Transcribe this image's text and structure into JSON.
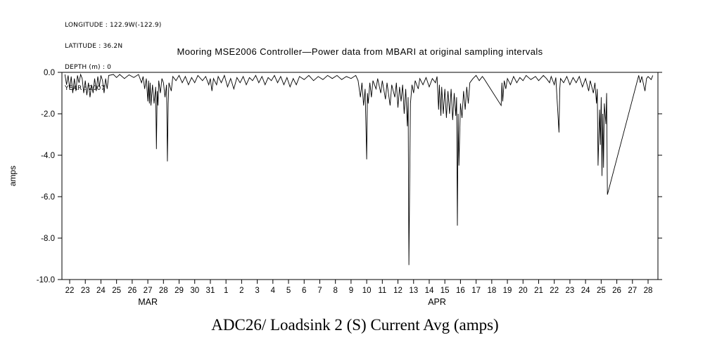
{
  "header_lines": [
    "LONGITUDE : 122.9W(-122.9)",
    "LATITUDE : 36.2N",
    "DEPTH (m) : 0",
    "YEAR : 2007"
  ],
  "chart_data": {
    "type": "line",
    "title": "Mooring MSE2006 Controller—Power data from MBARI at original sampling intervals",
    "bottom_title": "ADC26/ Loadsink 2 (S) Current Avg (amps)",
    "ylabel": "amps",
    "ylim": [
      -10,
      0
    ],
    "y_ticks": [
      0,
      -2,
      -4,
      -6,
      -8,
      -10
    ],
    "y_tick_labels": [
      "0.0",
      "-2.0",
      "-4.0",
      "-6.0",
      "-8.0",
      "-10.0"
    ],
    "x_unit": "day index, 0 = Mar 22 2007",
    "x_tick_labels": [
      "22",
      "23",
      "24",
      "25",
      "26",
      "27",
      "28",
      "29",
      "30",
      "31",
      "1",
      "2",
      "3",
      "4",
      "5",
      "6",
      "7",
      "8",
      "9",
      "10",
      "11",
      "12",
      "13",
      "14",
      "15",
      "16",
      "17",
      "18",
      "19",
      "20",
      "21",
      "22",
      "23",
      "24",
      "25",
      "26",
      "27",
      "28"
    ],
    "month_labels": [
      {
        "label": "MAR",
        "day": 5
      },
      {
        "label": "APR",
        "day": 23.5
      }
    ],
    "grid": false,
    "legend": "none",
    "line_color": "#000000",
    "series": [
      {
        "name": "Loadsink 2 (S) Current Avg (amps)",
        "points": [
          [
            -0.3,
            -0.1
          ],
          [
            -0.2,
            -0.6
          ],
          [
            -0.1,
            -0.15
          ],
          [
            0,
            -0.8
          ],
          [
            0.1,
            -0.2
          ],
          [
            0.2,
            -1.0
          ],
          [
            0.3,
            -0.3
          ],
          [
            0.4,
            -0.9
          ],
          [
            0.5,
            -0.15
          ],
          [
            0.6,
            -0.5
          ],
          [
            0.7,
            -0.1
          ],
          [
            0.8,
            -0.3
          ],
          [
            0.9,
            -1.0
          ],
          [
            1.0,
            -0.4
          ],
          [
            1.1,
            -1.1
          ],
          [
            1.2,
            -0.5
          ],
          [
            1.3,
            -1.2
          ],
          [
            1.4,
            -0.6
          ],
          [
            1.5,
            -1.0
          ],
          [
            1.6,
            -0.3
          ],
          [
            1.7,
            -0.9
          ],
          [
            1.8,
            -0.2
          ],
          [
            1.9,
            -0.7
          ],
          [
            2.0,
            -0.15
          ],
          [
            2.1,
            -0.4
          ],
          [
            2.2,
            -1.0
          ],
          [
            2.3,
            -0.3
          ],
          [
            2.4,
            -0.8
          ],
          [
            2.5,
            -0.15
          ],
          [
            2.8,
            -0.1
          ],
          [
            3.0,
            -0.25
          ],
          [
            3.2,
            -0.1
          ],
          [
            3.5,
            -0.3
          ],
          [
            3.8,
            -0.12
          ],
          [
            4.1,
            -0.25
          ],
          [
            4.4,
            -0.1
          ],
          [
            4.6,
            -0.5
          ],
          [
            4.7,
            -0.2
          ],
          [
            4.8,
            -0.8
          ],
          [
            4.9,
            -0.3
          ],
          [
            5.0,
            -1.4
          ],
          [
            5.05,
            -0.4
          ],
          [
            5.1,
            -1.5
          ],
          [
            5.15,
            -0.5
          ],
          [
            5.2,
            -1.6
          ],
          [
            5.3,
            -0.6
          ],
          [
            5.4,
            -1.5
          ],
          [
            5.5,
            -0.7
          ],
          [
            5.55,
            -3.7
          ],
          [
            5.6,
            -0.9
          ],
          [
            5.65,
            -1.6
          ],
          [
            5.7,
            -0.4
          ],
          [
            5.8,
            -1.0
          ],
          [
            5.9,
            -0.3
          ],
          [
            6.0,
            -0.5
          ],
          [
            6.1,
            -1.2
          ],
          [
            6.2,
            -0.6
          ],
          [
            6.25,
            -4.3
          ],
          [
            6.3,
            -1.5
          ],
          [
            6.35,
            -0.5
          ],
          [
            6.5,
            -0.9
          ],
          [
            6.6,
            -0.2
          ],
          [
            6.8,
            -0.4
          ],
          [
            7.0,
            -0.15
          ],
          [
            7.2,
            -0.5
          ],
          [
            7.4,
            -0.2
          ],
          [
            7.6,
            -0.6
          ],
          [
            7.8,
            -0.25
          ],
          [
            8.0,
            -0.5
          ],
          [
            8.2,
            -0.15
          ],
          [
            8.5,
            -0.4
          ],
          [
            8.7,
            -0.2
          ],
          [
            8.9,
            -0.6
          ],
          [
            9.0,
            -0.3
          ],
          [
            9.1,
            -0.9
          ],
          [
            9.2,
            -0.3
          ],
          [
            9.4,
            -0.6
          ],
          [
            9.5,
            -0.2
          ],
          [
            9.7,
            -0.5
          ],
          [
            9.9,
            -0.15
          ],
          [
            10.1,
            -0.7
          ],
          [
            10.3,
            -0.3
          ],
          [
            10.5,
            -0.8
          ],
          [
            10.7,
            -0.25
          ],
          [
            10.9,
            -0.5
          ],
          [
            11.1,
            -0.2
          ],
          [
            11.3,
            -0.6
          ],
          [
            11.5,
            -0.25
          ],
          [
            11.7,
            -0.4
          ],
          [
            11.9,
            -0.15
          ],
          [
            12.1,
            -0.5
          ],
          [
            12.3,
            -0.2
          ],
          [
            12.5,
            -0.6
          ],
          [
            12.7,
            -0.25
          ],
          [
            12.9,
            -0.4
          ],
          [
            13.1,
            -0.15
          ],
          [
            13.3,
            -0.5
          ],
          [
            13.5,
            -0.2
          ],
          [
            13.7,
            -0.6
          ],
          [
            13.9,
            -0.25
          ],
          [
            14.1,
            -0.7
          ],
          [
            14.3,
            -0.3
          ],
          [
            14.5,
            -0.6
          ],
          [
            14.7,
            -0.2
          ],
          [
            15.0,
            -0.35
          ],
          [
            15.3,
            -0.15
          ],
          [
            15.6,
            -0.4
          ],
          [
            15.9,
            -0.2
          ],
          [
            16.2,
            -0.35
          ],
          [
            16.5,
            -0.15
          ],
          [
            16.8,
            -0.3
          ],
          [
            17.1,
            -0.15
          ],
          [
            17.4,
            -0.35
          ],
          [
            17.7,
            -0.2
          ],
          [
            18.0,
            -0.3
          ],
          [
            18.3,
            -0.15
          ],
          [
            18.45,
            -0.4
          ],
          [
            18.6,
            -1.2
          ],
          [
            18.7,
            -0.5
          ],
          [
            18.8,
            -1.6
          ],
          [
            18.9,
            -0.8
          ],
          [
            19.0,
            -4.2
          ],
          [
            19.05,
            -1.0
          ],
          [
            19.1,
            -1.5
          ],
          [
            19.2,
            -0.5
          ],
          [
            19.3,
            -1.2
          ],
          [
            19.4,
            -0.4
          ],
          [
            19.6,
            -0.8
          ],
          [
            19.7,
            -0.3
          ],
          [
            19.9,
            -1.0
          ],
          [
            20.0,
            -0.4
          ],
          [
            20.2,
            -1.3
          ],
          [
            20.3,
            -0.5
          ],
          [
            20.5,
            -1.6
          ],
          [
            20.6,
            -0.6
          ],
          [
            20.8,
            -1.2
          ],
          [
            20.9,
            -0.5
          ],
          [
            21.0,
            -1.7
          ],
          [
            21.1,
            -0.7
          ],
          [
            21.2,
            -1.4
          ],
          [
            21.3,
            -0.6
          ],
          [
            21.4,
            -2.0
          ],
          [
            21.5,
            -0.8
          ],
          [
            21.6,
            -2.6
          ],
          [
            21.65,
            -1.2
          ],
          [
            21.7,
            -9.3
          ],
          [
            21.8,
            -1.5
          ],
          [
            21.9,
            -0.6
          ],
          [
            22.0,
            -1.0
          ],
          [
            22.1,
            -0.4
          ],
          [
            22.3,
            -0.8
          ],
          [
            22.4,
            -0.3
          ],
          [
            22.6,
            -0.6
          ],
          [
            22.8,
            -0.25
          ],
          [
            23.0,
            -0.7
          ],
          [
            23.2,
            -0.3
          ],
          [
            23.4,
            -0.5
          ],
          [
            23.5,
            -0.2
          ],
          [
            23.6,
            -1.8
          ],
          [
            23.65,
            -0.6
          ],
          [
            23.75,
            -2.1
          ],
          [
            23.8,
            -0.7
          ],
          [
            23.9,
            -2.0
          ],
          [
            24.0,
            -0.8
          ],
          [
            24.1,
            -2.2
          ],
          [
            24.2,
            -0.9
          ],
          [
            24.3,
            -2.0
          ],
          [
            24.4,
            -0.8
          ],
          [
            24.5,
            -2.3
          ],
          [
            24.6,
            -1.0
          ],
          [
            24.7,
            -2.1
          ],
          [
            24.75,
            -1.2
          ],
          [
            24.8,
            -7.4
          ],
          [
            24.85,
            -2.0
          ],
          [
            24.9,
            -4.5
          ],
          [
            25.0,
            -1.5
          ],
          [
            25.1,
            -2.2
          ],
          [
            25.2,
            -0.9
          ],
          [
            25.3,
            -1.8
          ],
          [
            25.4,
            -0.7
          ],
          [
            25.5,
            -1.5
          ],
          [
            25.6,
            -0.5
          ],
          [
            25.8,
            -0.3
          ],
          [
            26.0,
            -0.15
          ],
          [
            26.2,
            -0.4
          ],
          [
            26.4,
            -0.2
          ],
          [
            26.5,
            -0.3
          ],
          [
            27.6,
            -1.6
          ],
          [
            27.65,
            -0.5
          ],
          [
            27.7,
            -1.4
          ],
          [
            27.8,
            -0.4
          ],
          [
            27.9,
            -0.8
          ],
          [
            28.0,
            -0.3
          ],
          [
            28.2,
            -0.6
          ],
          [
            28.4,
            -0.2
          ],
          [
            28.6,
            -0.5
          ],
          [
            28.8,
            -0.25
          ],
          [
            29.0,
            -0.4
          ],
          [
            29.2,
            -0.15
          ],
          [
            29.5,
            -0.35
          ],
          [
            29.8,
            -0.2
          ],
          [
            30.0,
            -0.4
          ],
          [
            30.3,
            -0.15
          ],
          [
            30.5,
            -0.3
          ],
          [
            30.7,
            -0.5
          ],
          [
            30.8,
            -0.2
          ],
          [
            31.0,
            -0.6
          ],
          [
            31.1,
            -0.25
          ],
          [
            31.3,
            -2.9
          ],
          [
            31.35,
            -0.8
          ],
          [
            31.4,
            -0.3
          ],
          [
            31.6,
            -0.5
          ],
          [
            31.8,
            -0.2
          ],
          [
            32.0,
            -0.6
          ],
          [
            32.2,
            -0.25
          ],
          [
            32.4,
            -0.5
          ],
          [
            32.6,
            -0.2
          ],
          [
            32.8,
            -0.7
          ],
          [
            33.0,
            -0.3
          ],
          [
            33.2,
            -0.9
          ],
          [
            33.3,
            -0.4
          ],
          [
            33.5,
            -1.0
          ],
          [
            33.6,
            -0.5
          ],
          [
            33.7,
            -1.5
          ],
          [
            33.75,
            -0.8
          ],
          [
            33.8,
            -4.5
          ],
          [
            33.9,
            -1.8
          ],
          [
            33.95,
            -3.5
          ],
          [
            34.0,
            -1.2
          ],
          [
            34.05,
            -5.0
          ],
          [
            34.1,
            -2.0
          ],
          [
            34.15,
            -4.6
          ],
          [
            34.2,
            -1.5
          ],
          [
            34.3,
            -2.5
          ],
          [
            34.35,
            -1.0
          ],
          [
            34.4,
            -5.9
          ],
          [
            36.4,
            -0.15
          ],
          [
            36.5,
            -0.5
          ],
          [
            36.6,
            -0.2
          ],
          [
            36.8,
            -0.9
          ],
          [
            36.9,
            -0.3
          ],
          [
            37.0,
            -0.2
          ],
          [
            37.2,
            -0.35
          ],
          [
            37.3,
            -0.15
          ]
        ]
      }
    ]
  }
}
